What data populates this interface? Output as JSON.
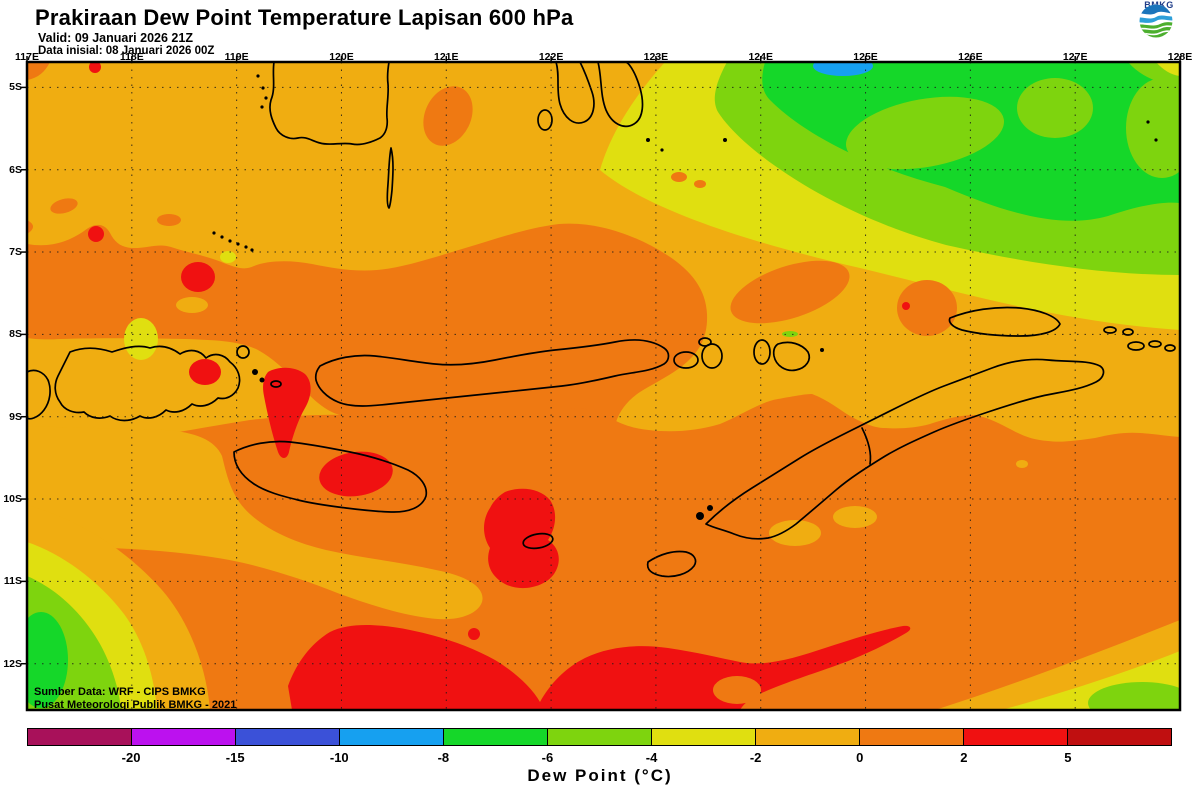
{
  "header": {
    "title": "Prakiraan Dew Point Temperature Lapisan 600 hPa",
    "valid": "Valid: 09 Januari 2026 21Z",
    "init": "Data inisial: 08 Januari 2026 00Z",
    "logo_text": "BMKG"
  },
  "map": {
    "lon_labels": [
      "117E",
      "118E",
      "119E",
      "120E",
      "121E",
      "122E",
      "123E",
      "124E",
      "125E",
      "126E",
      "127E",
      "128E"
    ],
    "lat_labels": [
      "5S",
      "6S",
      "7S",
      "8S",
      "9S",
      "10S",
      "11S",
      "12S"
    ],
    "source_line1": "Sumber Data: WRF - CIPS BMKG",
    "source_line2": "Pusat Meteorologi Publik BMKG - 2021"
  },
  "colorbar": {
    "label": "Dew Point (°C)",
    "ticks": [
      "-20",
      "-15",
      "-10",
      "-8",
      "-6",
      "-4",
      "-2",
      "0",
      "2",
      "5"
    ],
    "segments": [
      "#A8115A",
      "#BC11EF",
      "#3B51D8",
      "#16A0F0",
      "#15D729",
      "#7ED40E",
      "#E0DF10",
      "#F0AD11",
      "#EF7912",
      "#F01111",
      "#C00F10"
    ]
  },
  "palette": {
    "gold": "#F0AD11",
    "orange": "#EF7912",
    "red": "#F01111",
    "darkred": "#C00F10",
    "yellow": "#E0DF10",
    "chartreuse": "#7ED40E",
    "green": "#15D729",
    "bluelight": "#16A0F0",
    "blue": "#3B51D8",
    "purple": "#BC11EF",
    "magenta": "#A8115A"
  }
}
